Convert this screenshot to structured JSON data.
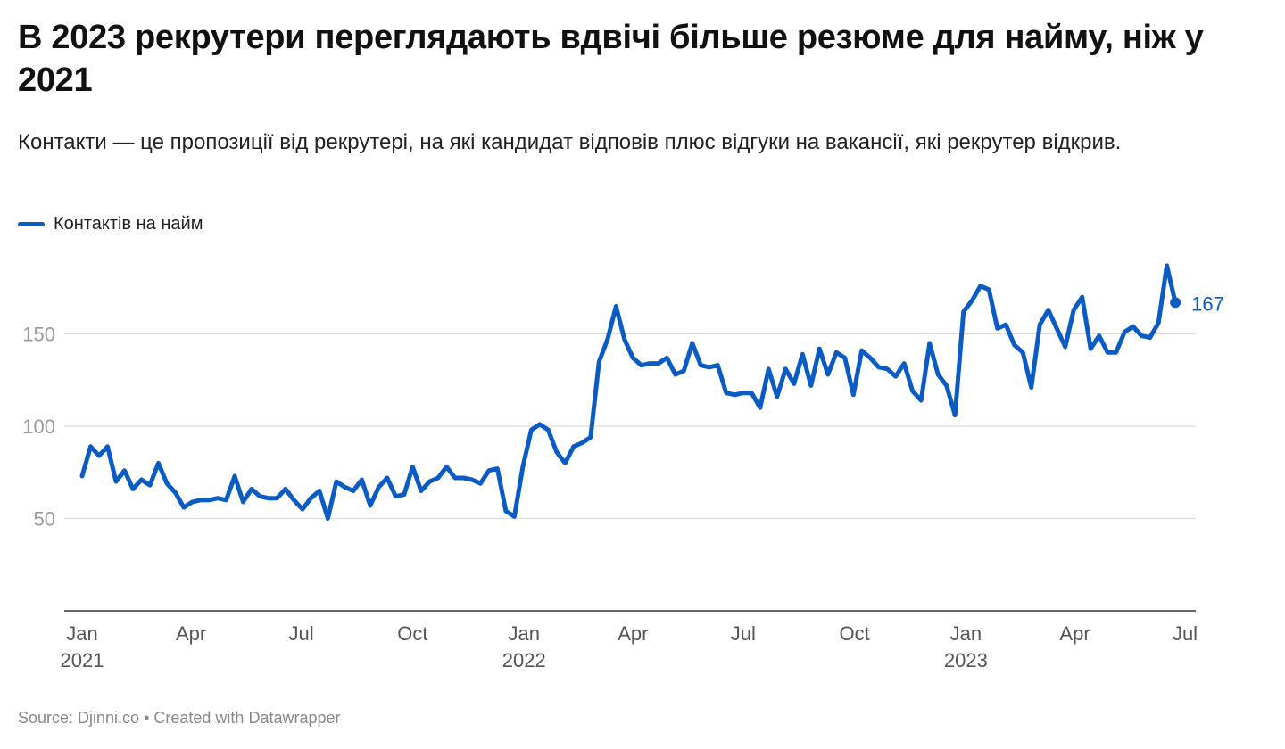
{
  "title": "В 2023 рекрутери переглядають вдвічі більше резюме для найму, ніж у 2021",
  "subtitle": "Контакти — це пропозиції від рекрутері, на які кандидат відповів плюс відгуки на вакансії, які рекрутер відкрив.",
  "legend": {
    "label": "Контактів на найм",
    "color": "#0a5cc4"
  },
  "footer": {
    "source": "Source: Djinni.co",
    "separator": "•",
    "credit": "Created with Datawrapper"
  },
  "chart_data": {
    "type": "line",
    "title": "В 2023 рекрутери переглядають вдвічі більше резюме для найму, ніж у 2021",
    "xlabel": "",
    "ylabel": "",
    "xlim": [
      "2021-01-01",
      "2023-07-01"
    ],
    "ylim": [
      0,
      190
    ],
    "yticks": [
      50,
      100,
      150
    ],
    "xticks": [
      {
        "date": "2021-01-01",
        "label": "Jan",
        "year": "2021"
      },
      {
        "date": "2021-04-01",
        "label": "Apr",
        "year": ""
      },
      {
        "date": "2021-07-01",
        "label": "Jul",
        "year": ""
      },
      {
        "date": "2021-10-01",
        "label": "Oct",
        "year": ""
      },
      {
        "date": "2022-01-01",
        "label": "Jan",
        "year": "2022"
      },
      {
        "date": "2022-04-01",
        "label": "Apr",
        "year": ""
      },
      {
        "date": "2022-07-01",
        "label": "Jul",
        "year": ""
      },
      {
        "date": "2022-10-01",
        "label": "Oct",
        "year": ""
      },
      {
        "date": "2023-01-01",
        "label": "Jan",
        "year": "2023"
      },
      {
        "date": "2023-04-01",
        "label": "Apr",
        "year": ""
      },
      {
        "date": "2023-07-01",
        "label": "Jul",
        "year": ""
      }
    ],
    "grid": true,
    "legend_position": "top-left",
    "end_label": "167",
    "series": [
      {
        "name": "Контактів на найм",
        "color": "#0a5cc4",
        "points": [
          [
            "2021-01-01",
            73
          ],
          [
            "2021-01-08",
            89
          ],
          [
            "2021-01-15",
            84
          ],
          [
            "2021-01-22",
            89
          ],
          [
            "2021-01-29",
            70
          ],
          [
            "2021-02-05",
            76
          ],
          [
            "2021-02-12",
            66
          ],
          [
            "2021-02-19",
            71
          ],
          [
            "2021-02-26",
            68
          ],
          [
            "2021-03-05",
            80
          ],
          [
            "2021-03-12",
            69
          ],
          [
            "2021-03-19",
            64
          ],
          [
            "2021-03-26",
            56
          ],
          [
            "2021-04-02",
            59
          ],
          [
            "2021-04-09",
            60
          ],
          [
            "2021-04-16",
            60
          ],
          [
            "2021-04-23",
            61
          ],
          [
            "2021-04-30",
            60
          ],
          [
            "2021-05-07",
            73
          ],
          [
            "2021-05-14",
            59
          ],
          [
            "2021-05-21",
            66
          ],
          [
            "2021-05-28",
            62
          ],
          [
            "2021-06-04",
            61
          ],
          [
            "2021-06-11",
            61
          ],
          [
            "2021-06-18",
            66
          ],
          [
            "2021-06-25",
            60
          ],
          [
            "2021-07-02",
            55
          ],
          [
            "2021-07-09",
            61
          ],
          [
            "2021-07-16",
            65
          ],
          [
            "2021-07-23",
            50
          ],
          [
            "2021-07-30",
            70
          ],
          [
            "2021-08-06",
            67
          ],
          [
            "2021-08-13",
            65
          ],
          [
            "2021-08-20",
            71
          ],
          [
            "2021-08-27",
            57
          ],
          [
            "2021-09-03",
            67
          ],
          [
            "2021-09-10",
            72
          ],
          [
            "2021-09-17",
            62
          ],
          [
            "2021-09-24",
            63
          ],
          [
            "2021-10-01",
            78
          ],
          [
            "2021-10-08",
            65
          ],
          [
            "2021-10-15",
            70
          ],
          [
            "2021-10-22",
            72
          ],
          [
            "2021-10-29",
            78
          ],
          [
            "2021-11-05",
            72
          ],
          [
            "2021-11-12",
            72
          ],
          [
            "2021-11-19",
            71
          ],
          [
            "2021-11-26",
            69
          ],
          [
            "2021-12-03",
            76
          ],
          [
            "2021-12-10",
            77
          ],
          [
            "2021-12-17",
            54
          ],
          [
            "2021-12-24",
            51
          ],
          [
            "2021-12-31",
            78
          ],
          [
            "2022-01-07",
            98
          ],
          [
            "2022-01-14",
            101
          ],
          [
            "2022-01-21",
            98
          ],
          [
            "2022-01-28",
            86
          ],
          [
            "2022-02-04",
            80
          ],
          [
            "2022-02-11",
            89
          ],
          [
            "2022-02-18",
            91
          ],
          [
            "2022-02-25",
            94
          ],
          [
            "2022-03-04",
            135
          ],
          [
            "2022-03-11",
            147
          ],
          [
            "2022-03-18",
            165
          ],
          [
            "2022-03-25",
            147
          ],
          [
            "2022-04-01",
            137
          ],
          [
            "2022-04-08",
            133
          ],
          [
            "2022-04-15",
            134
          ],
          [
            "2022-04-22",
            134
          ],
          [
            "2022-04-29",
            137
          ],
          [
            "2022-05-06",
            128
          ],
          [
            "2022-05-13",
            130
          ],
          [
            "2022-05-20",
            145
          ],
          [
            "2022-05-27",
            133
          ],
          [
            "2022-06-03",
            132
          ],
          [
            "2022-06-10",
            133
          ],
          [
            "2022-06-17",
            118
          ],
          [
            "2022-06-24",
            117
          ],
          [
            "2022-07-01",
            118
          ],
          [
            "2022-07-08",
            118
          ],
          [
            "2022-07-15",
            110
          ],
          [
            "2022-07-22",
            131
          ],
          [
            "2022-07-29",
            116
          ],
          [
            "2022-08-05",
            131
          ],
          [
            "2022-08-12",
            123
          ],
          [
            "2022-08-19",
            139
          ],
          [
            "2022-08-26",
            122
          ],
          [
            "2022-09-02",
            142
          ],
          [
            "2022-09-09",
            128
          ],
          [
            "2022-09-16",
            140
          ],
          [
            "2022-09-23",
            137
          ],
          [
            "2022-09-30",
            117
          ],
          [
            "2022-10-07",
            141
          ],
          [
            "2022-10-14",
            137
          ],
          [
            "2022-10-21",
            132
          ],
          [
            "2022-10-28",
            131
          ],
          [
            "2022-11-04",
            127
          ],
          [
            "2022-11-11",
            134
          ],
          [
            "2022-11-18",
            119
          ],
          [
            "2022-11-25",
            114
          ],
          [
            "2022-12-02",
            145
          ],
          [
            "2022-12-09",
            128
          ],
          [
            "2022-12-16",
            122
          ],
          [
            "2022-12-23",
            106
          ],
          [
            "2022-12-30",
            162
          ],
          [
            "2023-01-06",
            168
          ],
          [
            "2023-01-13",
            176
          ],
          [
            "2023-01-20",
            174
          ],
          [
            "2023-01-27",
            153
          ],
          [
            "2023-02-03",
            155
          ],
          [
            "2023-02-10",
            144
          ],
          [
            "2023-02-17",
            140
          ],
          [
            "2023-02-24",
            121
          ],
          [
            "2023-03-03",
            155
          ],
          [
            "2023-03-10",
            163
          ],
          [
            "2023-03-17",
            153
          ],
          [
            "2023-03-24",
            143
          ],
          [
            "2023-03-31",
            163
          ],
          [
            "2023-04-07",
            170
          ],
          [
            "2023-04-14",
            142
          ],
          [
            "2023-04-21",
            149
          ],
          [
            "2023-04-28",
            140
          ],
          [
            "2023-05-05",
            140
          ],
          [
            "2023-05-12",
            151
          ],
          [
            "2023-05-19",
            154
          ],
          [
            "2023-05-26",
            149
          ],
          [
            "2023-06-02",
            148
          ],
          [
            "2023-06-09",
            156
          ],
          [
            "2023-06-16",
            187
          ],
          [
            "2023-06-23",
            167
          ]
        ]
      }
    ]
  }
}
